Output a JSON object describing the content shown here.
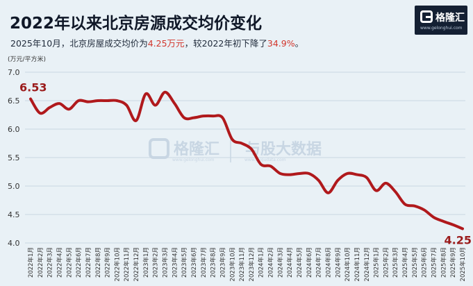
{
  "header": {
    "title": "2022年以来北京房源成交均价变化",
    "subtitle_prefix": "2025年10月，北京房屋成交均价为",
    "subtitle_value": "4.25万元",
    "subtitle_mid": "，较2022年初下降了",
    "subtitle_pct": "34.9%",
    "subtitle_suffix": "。"
  },
  "logo": {
    "name": "格隆汇",
    "url": "www.gelonghui.com"
  },
  "watermark": {
    "left": "格隆汇",
    "right": "与股大数据",
    "url_left": "www.gelonghui.com",
    "url_right": "www.gugudata.com"
  },
  "colors": {
    "line": "#b0191c",
    "grid": "#c9d6e1",
    "background": "#e9f1f6"
  },
  "chart_data": {
    "type": "line",
    "unit_label": "(万元/平方米)",
    "ylim": [
      4.0,
      7.0
    ],
    "yticks": [
      4.0,
      4.5,
      5.0,
      5.5,
      6.0,
      6.5,
      7.0
    ],
    "grid": true,
    "categories": [
      "2022年1月",
      "2022年2月",
      "2022年3月",
      "2022年4月",
      "2022年5月",
      "2022年6月",
      "2022年7月",
      "2022年8月",
      "2022年9月",
      "2022年10月",
      "2022年11月",
      "2022年12月",
      "2023年1月",
      "2023年2月",
      "2023年3月",
      "2023年4月",
      "2023年5月",
      "2023年6月",
      "2023年7月",
      "2023年8月",
      "2023年9月",
      "2023年10月",
      "2023年11月",
      "2023年12月",
      "2024年1月",
      "2024年2月",
      "2024年3月",
      "2024年4月",
      "2024年5月",
      "2024年6月",
      "2024年7月",
      "2024年8月",
      "2024年9月",
      "2024年10月",
      "2024年11月",
      "2024年12月",
      "2025年1月",
      "2025年2月",
      "2025年3月",
      "2025年4月",
      "2025年5月",
      "2025年6月",
      "2025年7月",
      "2025年8月",
      "2025年9月",
      "2025年10月"
    ],
    "x_tick_labels": [
      "2022年1月",
      "2022年2月",
      "2022年3月",
      "2022年4月",
      "2022年5月",
      "2022年6月",
      "2022年7月",
      "2022年8月",
      "2022年9月",
      "2022年10月",
      "2022年11月",
      "2022年12月",
      "2023年1月",
      "2023年2月",
      "2023年3月",
      "2023年4月",
      "2023年5月",
      "2023年6月",
      "2023年7月",
      "2023年8月",
      "2023年9月",
      "2023年10月",
      "2023年11月",
      "2023年12月",
      "2024年1月",
      "2024年2月",
      "2024年3月",
      "2024年4月",
      "2024年5月",
      "2024年6月",
      "2024年7月",
      "2024年8月",
      "2024年9月",
      "2024年10月",
      "2024年11月",
      "2024年12月",
      "2025年1月",
      "2025年2月",
      "2025年3月",
      "2025年4月",
      "2025年5月",
      "2025年6月",
      "2025年7月",
      "2025年8月",
      "2025年9月",
      "2025年10月"
    ],
    "series": [
      {
        "values": [
          6.53,
          6.28,
          6.38,
          6.45,
          6.35,
          6.5,
          6.48,
          6.5,
          6.5,
          6.5,
          6.42,
          6.15,
          6.62,
          6.42,
          6.65,
          6.45,
          6.2,
          6.2,
          6.23,
          6.23,
          6.2,
          5.82,
          5.75,
          5.65,
          5.38,
          5.35,
          5.22,
          5.2,
          5.22,
          5.22,
          5.1,
          4.88,
          5.1,
          5.22,
          5.2,
          5.15,
          4.92,
          5.05,
          4.9,
          4.68,
          4.65,
          4.58,
          4.45,
          4.38,
          4.32,
          4.25
        ]
      }
    ],
    "data_labels": [
      {
        "index": 0,
        "text": "6.53"
      },
      {
        "index": 45,
        "text": "4.25"
      }
    ]
  }
}
